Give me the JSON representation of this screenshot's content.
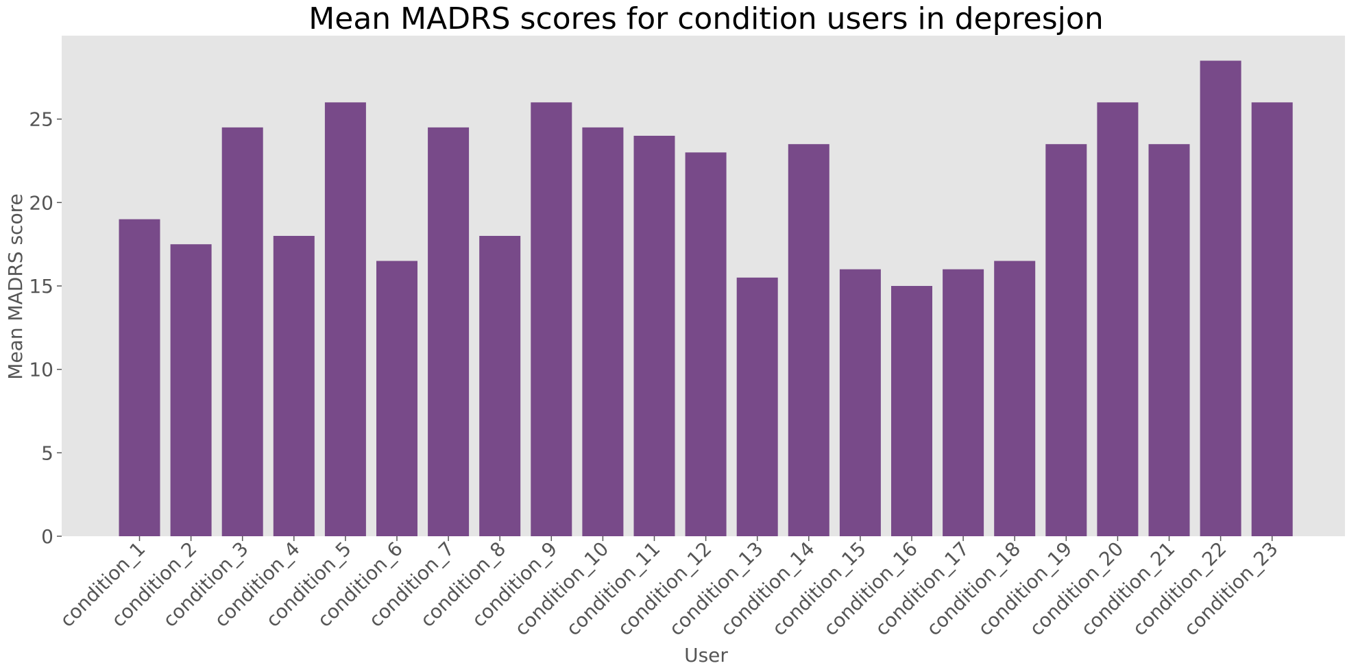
{
  "chart_data": {
    "type": "bar",
    "title": "Mean MADRS scores for condition users in depresjon",
    "xlabel": "User",
    "ylabel": "Mean MADRS score",
    "categories": [
      "condition_1",
      "condition_2",
      "condition_3",
      "condition_4",
      "condition_5",
      "condition_6",
      "condition_7",
      "condition_8",
      "condition_9",
      "condition_10",
      "condition_11",
      "condition_12",
      "condition_13",
      "condition_14",
      "condition_15",
      "condition_16",
      "condition_17",
      "condition_18",
      "condition_19",
      "condition_20",
      "condition_21",
      "condition_22",
      "condition_23"
    ],
    "values": [
      19,
      17.5,
      24.5,
      18,
      26,
      16.5,
      24.5,
      18,
      26,
      24.5,
      24,
      23,
      15.5,
      23.5,
      16,
      15,
      16,
      16.5,
      23.5,
      26,
      23.5,
      28.5,
      26
    ],
    "yticks": [
      "0",
      "5",
      "10",
      "15",
      "20",
      "25"
    ],
    "ylim": [
      0,
      30
    ],
    "grid": false,
    "colors": {
      "bar": "#784a89",
      "plot_background": "#e5e5e5",
      "tick": "#555555"
    }
  }
}
